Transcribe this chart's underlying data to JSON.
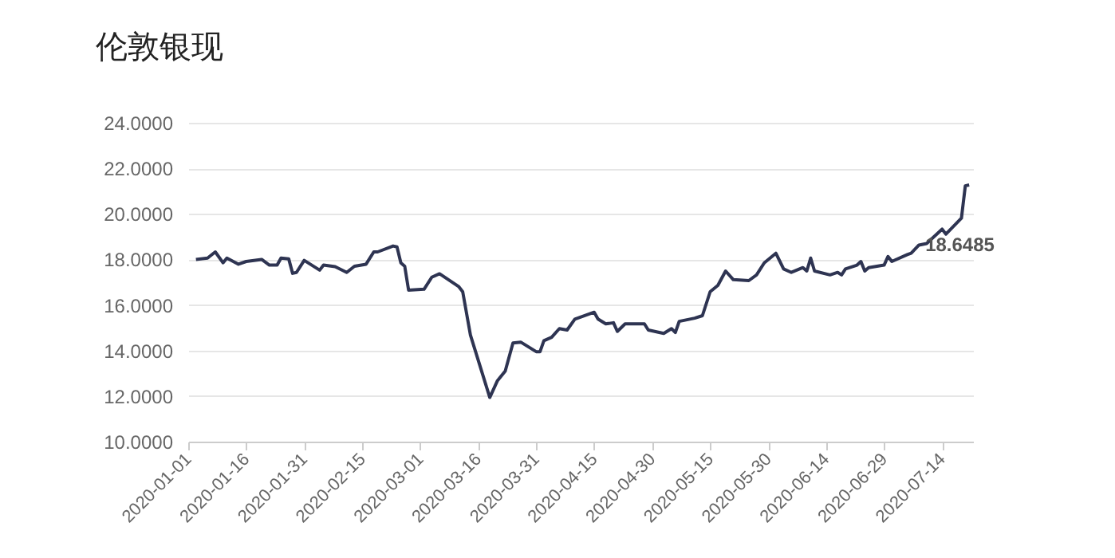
{
  "chart_data": {
    "type": "line",
    "title": "伦敦银现",
    "x": [
      "2020-01-03",
      "2020-01-06",
      "2020-01-08",
      "2020-01-10",
      "2020-01-11",
      "2020-01-14",
      "2020-01-16",
      "2020-01-20",
      "2020-01-22",
      "2020-01-24",
      "2020-01-25",
      "2020-01-27",
      "2020-01-28",
      "2020-01-29",
      "2020-01-31",
      "2020-02-04",
      "2020-02-05",
      "2020-02-08",
      "2020-02-11",
      "2020-02-13",
      "2020-02-16",
      "2020-02-18",
      "2020-02-19",
      "2020-02-23",
      "2020-02-24",
      "2020-02-25",
      "2020-02-26",
      "2020-02-27",
      "2020-03-02",
      "2020-03-04",
      "2020-03-06",
      "2020-03-11",
      "2020-03-12",
      "2020-03-14",
      "2020-03-19",
      "2020-03-21",
      "2020-03-23",
      "2020-03-25",
      "2020-03-27",
      "2020-03-31",
      "2020-04-01",
      "2020-04-02",
      "2020-04-04",
      "2020-04-06",
      "2020-04-08",
      "2020-04-10",
      "2020-04-15",
      "2020-04-16",
      "2020-04-18",
      "2020-04-20",
      "2020-04-21",
      "2020-04-23",
      "2020-04-28",
      "2020-04-29",
      "2020-05-03",
      "2020-05-05",
      "2020-05-06",
      "2020-05-07",
      "2020-05-11",
      "2020-05-13",
      "2020-05-15",
      "2020-05-17",
      "2020-05-19",
      "2020-05-21",
      "2020-05-25",
      "2020-05-27",
      "2020-05-29",
      "2020-06-01",
      "2020-06-03",
      "2020-06-05",
      "2020-06-08",
      "2020-06-09",
      "2020-06-10",
      "2020-06-11",
      "2020-06-15",
      "2020-06-17",
      "2020-06-18",
      "2020-06-19",
      "2020-06-22",
      "2020-06-23",
      "2020-06-24",
      "2020-06-25",
      "2020-06-29",
      "2020-06-30",
      "2020-07-01",
      "2020-07-05",
      "2020-07-06",
      "2020-07-08",
      "2020-07-10",
      "2020-07-14",
      "2020-07-15",
      "2020-07-19",
      "2020-07-20",
      "2020-07-21"
    ],
    "series": [
      {
        "color": "#2e3452",
        "values": [
          18.0,
          18.06,
          18.33,
          17.85,
          18.06,
          17.79,
          17.91,
          18.0,
          17.75,
          17.75,
          18.06,
          18.02,
          17.39,
          17.43,
          17.96,
          17.53,
          17.75,
          17.68,
          17.43,
          17.7,
          17.79,
          18.33,
          18.33,
          18.59,
          18.55,
          17.85,
          17.7,
          16.65,
          16.69,
          17.22,
          17.37,
          16.8,
          16.58,
          14.68,
          11.94,
          12.68,
          13.1,
          14.33,
          14.37,
          13.95,
          13.95,
          14.43,
          14.58,
          14.96,
          14.9,
          15.38,
          15.68,
          15.38,
          15.17,
          15.22,
          14.84,
          15.17,
          15.17,
          14.9,
          14.75,
          14.96,
          14.79,
          15.28,
          15.42,
          15.53,
          16.58,
          16.86,
          17.49,
          17.11,
          17.07,
          17.32,
          17.85,
          18.27,
          17.58,
          17.43,
          17.64,
          17.49,
          18.06,
          17.49,
          17.32,
          17.43,
          17.32,
          17.58,
          17.75,
          17.91,
          17.49,
          17.64,
          17.75,
          18.13,
          17.91,
          18.21,
          18.27,
          18.63,
          18.7,
          19.33,
          19.11,
          19.81,
          21.23,
          21.27
        ]
      }
    ],
    "xlim": [
      "2020-01-01",
      "2020-07-22"
    ],
    "xticks": [
      "2020-01-01",
      "2020-01-16",
      "2020-01-31",
      "2020-02-15",
      "2020-03-01",
      "2020-03-16",
      "2020-03-31",
      "2020-04-15",
      "2020-04-30",
      "2020-05-15",
      "2020-05-30",
      "2020-06-14",
      "2020-06-29",
      "2020-07-14"
    ],
    "ylim": [
      10,
      24
    ],
    "yticks": [
      {
        "value": 10,
        "label": "10.0000"
      },
      {
        "value": 12,
        "label": "12.0000"
      },
      {
        "value": 14,
        "label": "14.0000"
      },
      {
        "value": 16,
        "label": "16.0000"
      },
      {
        "value": 18,
        "label": "18.0000"
      },
      {
        "value": 20,
        "label": "20.0000"
      },
      {
        "value": 22,
        "label": "22.0000"
      },
      {
        "value": 24,
        "label": "24.0000"
      }
    ],
    "grid": "y",
    "annotations": [
      {
        "text": "18.6485",
        "x": "2020-07-08",
        "y": 18.6485
      }
    ]
  }
}
